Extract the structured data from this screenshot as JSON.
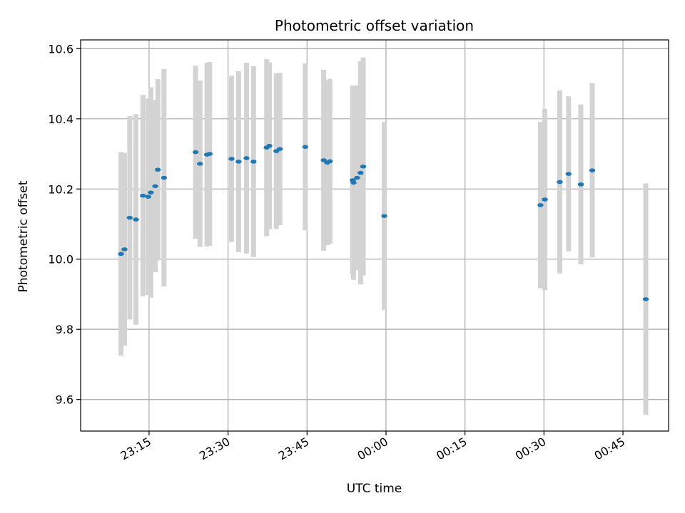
{
  "chart_data": {
    "type": "scatter",
    "title": "Photometric offset variation",
    "xlabel": "UTC time",
    "ylabel": "Photometric offset",
    "x_unit": "UTC time (HH:MM)",
    "xlim": [
      "23:02:00",
      "00:53:40"
    ],
    "ylim": [
      9.51,
      10.625
    ],
    "x_ticks": [
      "23:15",
      "23:30",
      "23:45",
      "00:00",
      "00:15",
      "00:30",
      "00:45"
    ],
    "y_ticks": [
      9.6,
      9.8,
      10.0,
      10.2,
      10.4,
      10.6
    ],
    "y_tick_labels": [
      "9.6",
      "9.8",
      "10.0",
      "10.2",
      "10.4",
      "10.6"
    ],
    "grid": true,
    "legend": "none",
    "colors": {
      "points": "#1f77b4",
      "error_bars": "#d3d3d3",
      "grid": "#b0b0b0"
    },
    "series": [
      {
        "points": [
          {
            "x": "23:09:40",
            "y": 10.015,
            "err": 0.29
          },
          {
            "x": "23:10:20",
            "y": 10.028,
            "err": 0.275
          },
          {
            "x": "23:11:20",
            "y": 10.118,
            "err": 0.29
          },
          {
            "x": "23:12:30",
            "y": 10.113,
            "err": 0.3
          },
          {
            "x": "23:13:50",
            "y": 10.181,
            "err": 0.287
          },
          {
            "x": "23:14:50",
            "y": 10.178,
            "err": 0.28
          },
          {
            "x": "23:15:20",
            "y": 10.19,
            "err": 0.3
          },
          {
            "x": "23:16:10",
            "y": 10.208,
            "err": 0.245
          },
          {
            "x": "23:16:40",
            "y": 10.255,
            "err": 0.258
          },
          {
            "x": "23:17:50",
            "y": 10.232,
            "err": 0.31
          },
          {
            "x": "23:23:50",
            "y": 10.305,
            "err": 0.247
          },
          {
            "x": "23:24:40",
            "y": 10.272,
            "err": 0.237
          },
          {
            "x": "23:26:00",
            "y": 10.298,
            "err": 0.262
          },
          {
            "x": "23:26:30",
            "y": 10.3,
            "err": 0.262
          },
          {
            "x": "23:30:40",
            "y": 10.286,
            "err": 0.237
          },
          {
            "x": "23:32:00",
            "y": 10.278,
            "err": 0.258
          },
          {
            "x": "23:33:30",
            "y": 10.288,
            "err": 0.272
          },
          {
            "x": "23:34:50",
            "y": 10.278,
            "err": 0.272
          },
          {
            "x": "23:37:20",
            "y": 10.318,
            "err": 0.252
          },
          {
            "x": "23:37:50",
            "y": 10.323,
            "err": 0.238
          },
          {
            "x": "23:39:10",
            "y": 10.308,
            "err": 0.222
          },
          {
            "x": "23:39:50",
            "y": 10.314,
            "err": 0.217
          },
          {
            "x": "23:44:40",
            "y": 10.32,
            "err": 0.238
          },
          {
            "x": "23:48:10",
            "y": 10.282,
            "err": 0.258
          },
          {
            "x": "23:48:50",
            "y": 10.275,
            "err": 0.235
          },
          {
            "x": "23:49:20",
            "y": 10.279,
            "err": 0.235
          },
          {
            "x": "23:53:40",
            "y": 10.225,
            "err": 0.27
          },
          {
            "x": "23:53:50",
            "y": 10.218,
            "err": 0.277
          },
          {
            "x": "23:54:30",
            "y": 10.232,
            "err": 0.263
          },
          {
            "x": "23:55:10",
            "y": 10.246,
            "err": 0.318
          },
          {
            "x": "23:55:40",
            "y": 10.264,
            "err": 0.311
          },
          {
            "x": "23:59:40",
            "y": 10.123,
            "err": 0.268
          },
          {
            "x": "00:29:20",
            "y": 10.154,
            "err": 0.237
          },
          {
            "x": "00:30:10",
            "y": 10.17,
            "err": 0.258
          },
          {
            "x": "00:33:00",
            "y": 10.22,
            "err": 0.261
          },
          {
            "x": "00:34:40",
            "y": 10.243,
            "err": 0.221
          },
          {
            "x": "00:37:00",
            "y": 10.213,
            "err": 0.228
          },
          {
            "x": "00:39:10",
            "y": 10.253,
            "err": 0.248
          },
          {
            "x": "00:49:20",
            "y": 9.886,
            "err": 0.33
          }
        ]
      }
    ]
  }
}
